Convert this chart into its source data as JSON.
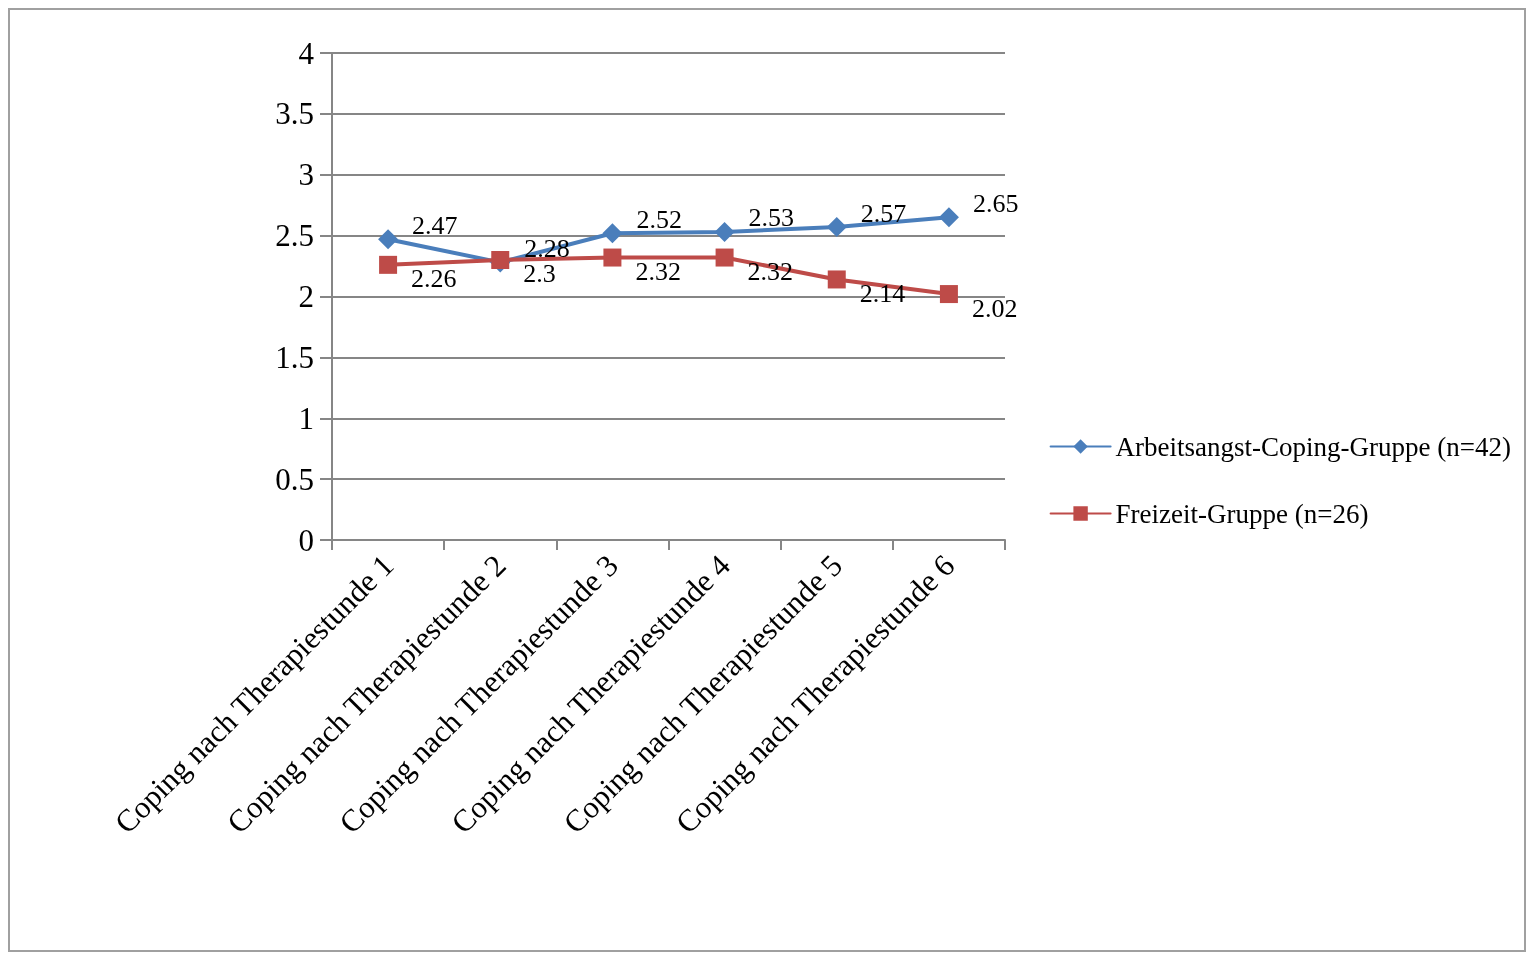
{
  "chart_data": {
    "type": "line",
    "categories": [
      "Coping nach Therapiestunde 1",
      "Coping nach Therapiestunde 2",
      "Coping nach Therapiestunde 3",
      "Coping nach Therapiestunde 4",
      "Coping nach Therapiestunde 5",
      "Coping nach Therapiestunde 6"
    ],
    "series": [
      {
        "name": "Arbeitsangst-Coping-Gruppe (n=42)",
        "color": "#4a7ebb",
        "marker": "diamond",
        "values": [
          2.47,
          2.28,
          2.52,
          2.53,
          2.57,
          2.65
        ]
      },
      {
        "name": "Freizeit-Gruppe (n=26)",
        "color": "#be4b48",
        "marker": "square",
        "values": [
          2.26,
          2.3,
          2.32,
          2.32,
          2.14,
          2.02
        ]
      }
    ],
    "ylim": [
      0,
      4
    ],
    "yticks": [
      0,
      0.5,
      1,
      1.5,
      2,
      2.5,
      3,
      3.5,
      4
    ],
    "grid": "y",
    "legend": "right",
    "data_labels": true,
    "line_style": "solid"
  }
}
